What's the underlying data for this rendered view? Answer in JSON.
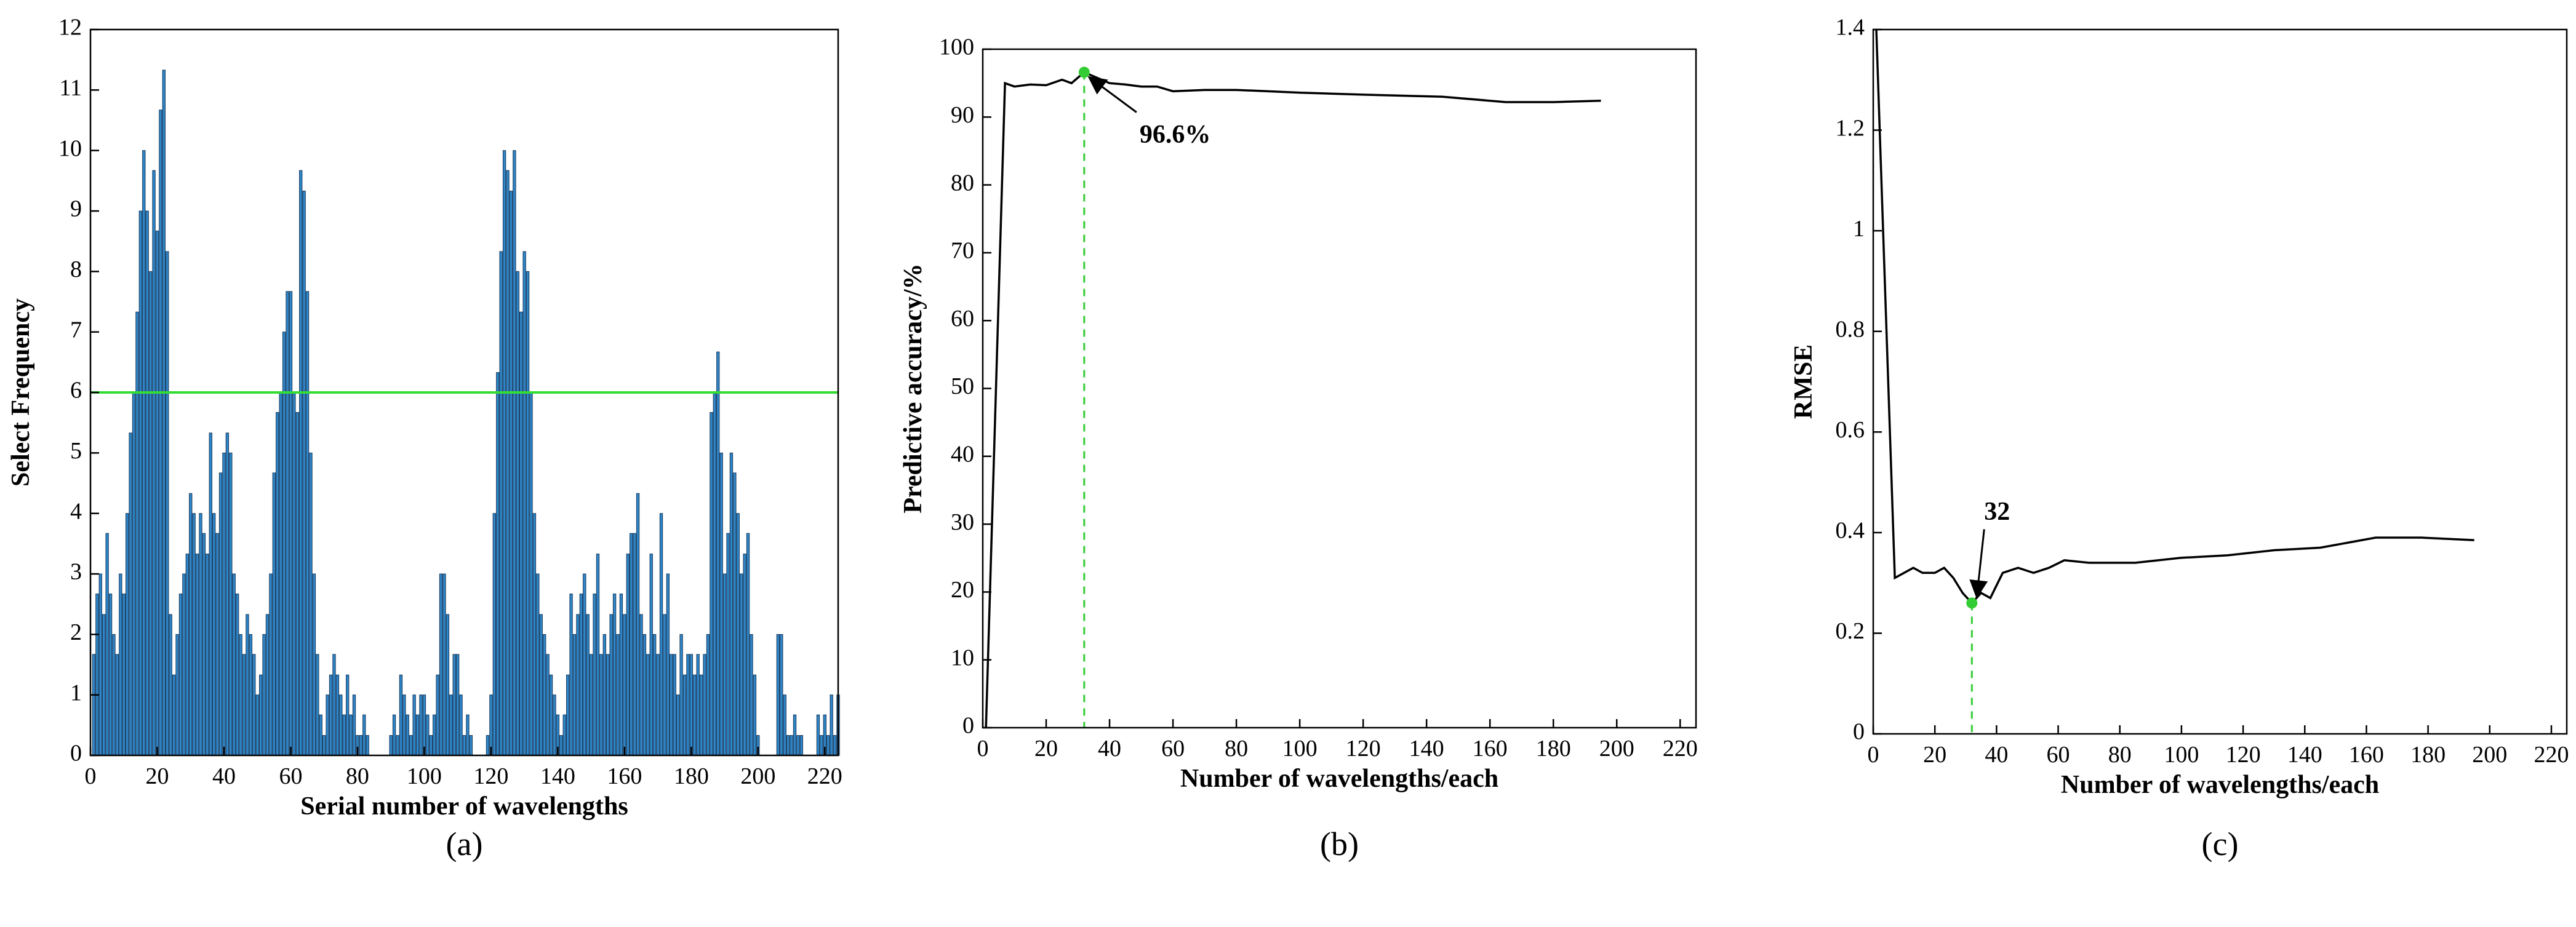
{
  "chart_data": [
    {
      "type": "bar",
      "caption": "(a)",
      "xlabel": "Serial number of wavelengths",
      "ylabel": "Select Frequency",
      "color": "#2e86c8",
      "edge_color": "#1b3a5c",
      "threshold": 6,
      "threshold_color": "#33dd33",
      "x": [
        1,
        2,
        3,
        4,
        5,
        6,
        7,
        8,
        9,
        10,
        11,
        12,
        13,
        14,
        15,
        16,
        17,
        18,
        19,
        20,
        21,
        22,
        23,
        24,
        25,
        26,
        27,
        28,
        29,
        30,
        31,
        32,
        33,
        34,
        35,
        36,
        37,
        38,
        39,
        40,
        41,
        42,
        43,
        44,
        45,
        46,
        47,
        48,
        49,
        50,
        51,
        52,
        53,
        54,
        55,
        56,
        57,
        58,
        59,
        60,
        61,
        62,
        63,
        64,
        65,
        66,
        67,
        68,
        69,
        70,
        71,
        72,
        73,
        74,
        75,
        76,
        77,
        78,
        79,
        80,
        81,
        82,
        83,
        84,
        85,
        86,
        87,
        88,
        89,
        90,
        91,
        92,
        93,
        94,
        95,
        96,
        97,
        98,
        99,
        100,
        101,
        102,
        103,
        104,
        105,
        106,
        107,
        108,
        109,
        110,
        111,
        112,
        113,
        114,
        115,
        116,
        117,
        118,
        119,
        120,
        121,
        122,
        123,
        124,
        125,
        126,
        127,
        128,
        129,
        130,
        131,
        132,
        133,
        134,
        135,
        136,
        137,
        138,
        139,
        140,
        141,
        142,
        143,
        144,
        145,
        146,
        147,
        148,
        149,
        150,
        151,
        152,
        153,
        154,
        155,
        156,
        157,
        158,
        159,
        160,
        161,
        162,
        163,
        164,
        165,
        166,
        167,
        168,
        169,
        170,
        171,
        172,
        173,
        174,
        175,
        176,
        177,
        178,
        179,
        180,
        181,
        182,
        183,
        184,
        185,
        186,
        187,
        188,
        189,
        190,
        191,
        192,
        193,
        194,
        195,
        196,
        197,
        198,
        199,
        200,
        201,
        202,
        203,
        204,
        205,
        206,
        207,
        208,
        209,
        210,
        211,
        212,
        213,
        214,
        215,
        216,
        217,
        218,
        219,
        220,
        221,
        222,
        223,
        224
      ],
      "values": [
        1.67,
        2.67,
        3,
        2.33,
        3.67,
        2.67,
        2,
        1.67,
        3,
        2.67,
        4,
        5.33,
        6,
        7.33,
        9,
        10,
        9,
        8,
        9.67,
        8.67,
        10.67,
        11.33,
        8.33,
        2.33,
        1.33,
        2,
        2.67,
        3,
        3.33,
        4.33,
        4,
        3.33,
        4,
        3.67,
        3.33,
        5.33,
        4,
        3.67,
        4.67,
        5,
        5.33,
        5,
        3,
        2.67,
        2,
        1.67,
        2.33,
        2,
        1.67,
        1,
        1.33,
        2,
        2.33,
        3,
        4.67,
        5.67,
        6,
        7,
        7.67,
        7.67,
        6,
        5.67,
        9.67,
        9.33,
        7.67,
        5,
        3,
        1.67,
        0.67,
        0.33,
        1,
        1.33,
        1.67,
        1.33,
        1,
        0.67,
        1.33,
        0.67,
        1,
        0.33,
        0.33,
        0.67,
        0.33,
        0,
        0,
        0,
        0,
        0,
        0,
        0.33,
        0.67,
        0.33,
        1.33,
        1,
        0.67,
        0.33,
        1,
        0.67,
        1,
        1,
        0.67,
        0.33,
        0.67,
        1.33,
        3,
        3,
        2.33,
        1,
        1.67,
        1.67,
        1,
        0.33,
        0.67,
        0.33,
        0,
        0,
        0,
        0,
        0.33,
        1,
        4,
        6.33,
        8.33,
        10,
        9.67,
        9.33,
        10,
        8,
        7.33,
        8.33,
        8,
        6,
        4,
        3,
        2.33,
        2,
        1.67,
        1.33,
        1,
        0.67,
        0.33,
        0.67,
        1.33,
        2.67,
        2,
        2.33,
        2.67,
        3,
        2.33,
        1.67,
        2.67,
        3.33,
        1.67,
        2,
        1.67,
        2.33,
        2.67,
        2,
        2.67,
        2.33,
        3.33,
        3.67,
        3.67,
        4.33,
        2.33,
        2,
        1.67,
        3.33,
        2,
        1.67,
        4,
        2.33,
        3,
        1.67,
        1.67,
        1,
        2,
        1.33,
        1.67,
        1.67,
        1.33,
        1.67,
        1.33,
        1.67,
        2,
        5.67,
        6,
        6.67,
        5,
        3,
        3.67,
        5,
        4.67,
        4,
        3,
        3.33,
        3.67,
        2,
        1.33,
        0.33,
        0,
        0,
        0,
        0,
        0,
        2,
        2,
        1,
        0.33,
        0.33,
        0.67,
        0.33,
        0.33,
        0,
        0,
        0,
        0,
        0.67,
        0.33,
        0.67,
        0.33,
        1,
        0.33,
        1
      ],
      "xlim": [
        0,
        224
      ],
      "xticks": [
        0,
        20,
        40,
        60,
        80,
        100,
        120,
        140,
        160,
        180,
        200,
        220
      ],
      "ylim": [
        0,
        12
      ],
      "yticks": [
        0,
        1,
        2,
        3,
        4,
        5,
        6,
        7,
        8,
        9,
        10,
        11,
        12
      ]
    },
    {
      "type": "line",
      "caption": "(b)",
      "xlabel": "Number of wavelengths/each",
      "ylabel": "Predictive accuracy/%",
      "color": "#000000",
      "highlight_color": "#33cc33",
      "x": [
        1,
        7,
        10,
        15,
        20,
        25,
        28,
        32,
        35,
        40,
        45,
        50,
        55,
        60,
        70,
        80,
        90,
        100,
        120,
        145,
        165,
        180,
        195
      ],
      "values": [
        0,
        95,
        94.5,
        94.8,
        94.7,
        95.5,
        95,
        96.6,
        96,
        95,
        94.8,
        94.5,
        94.5,
        93.8,
        94,
        94,
        93.8,
        93.6,
        93.3,
        93,
        92.2,
        92.2,
        92.4
      ],
      "highlight": {
        "x": 32,
        "y": 96.6,
        "label": "96.6%"
      },
      "xlim": [
        0,
        225
      ],
      "xticks": [
        0,
        20,
        40,
        60,
        80,
        100,
        120,
        140,
        160,
        180,
        200,
        220
      ],
      "ylim": [
        0,
        100
      ],
      "yticks": [
        0,
        10,
        20,
        30,
        40,
        50,
        60,
        70,
        80,
        90,
        100
      ]
    },
    {
      "type": "line",
      "caption": "(c)",
      "xlabel": "Number of wavelengths/each",
      "ylabel": "RMSE",
      "color": "#000000",
      "highlight_color": "#33cc33",
      "x": [
        1,
        7,
        10,
        13,
        16,
        20,
        23,
        26,
        29,
        32,
        35,
        38,
        42,
        47,
        52,
        57,
        62,
        70,
        85,
        100,
        115,
        130,
        145,
        163,
        178,
        195
      ],
      "values": [
        1.4,
        0.31,
        0.32,
        0.33,
        0.32,
        0.32,
        0.33,
        0.31,
        0.28,
        0.26,
        0.28,
        0.27,
        0.32,
        0.33,
        0.32,
        0.33,
        0.345,
        0.34,
        0.34,
        0.35,
        0.355,
        0.365,
        0.37,
        0.39,
        0.39,
        0.385
      ],
      "highlight": {
        "x": 32,
        "y": 0.26
      },
      "xlim": [
        0,
        225
      ],
      "xticks": [
        0,
        20,
        40,
        60,
        80,
        100,
        120,
        140,
        160,
        180,
        200,
        220
      ],
      "ylim": [
        0,
        1.4
      ],
      "yticks": [
        0,
        0.2,
        0.4,
        0.6,
        0.8,
        1,
        1.2,
        1.4
      ]
    }
  ]
}
